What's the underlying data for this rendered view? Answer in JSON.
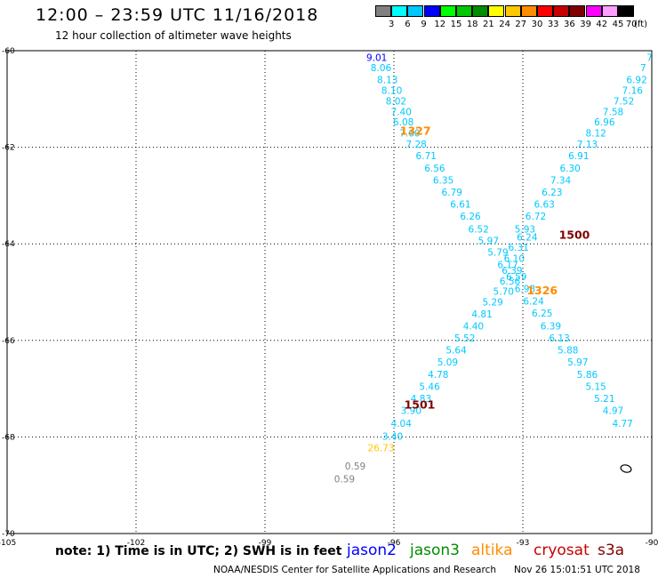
{
  "title": "12:00 – 23:59 UTC 11/16/2018",
  "subtitle": "12 hour collection of altimeter wave heights",
  "colorbar": {
    "labels": [
      "3",
      "6",
      "9",
      "12",
      "15",
      "18",
      "21",
      "24",
      "27",
      "30",
      "33",
      "36",
      "39",
      "42",
      "45",
      "70"
    ],
    "colors": [
      "#808080",
      "#00ffff",
      "#00c8ff",
      "#0000ff",
      "#00ff00",
      "#00c800",
      "#008c00",
      "#ffff00",
      "#ffc800",
      "#ff8c00",
      "#ff0000",
      "#c80000",
      "#800000",
      "#ff00ff",
      "#ffa0ff",
      "#000000"
    ],
    "unit": "(ft)"
  },
  "note": "note: 1) Time is in UTC; 2) SWH is in feet",
  "satellites": [
    {
      "name": "jason2",
      "color": "#0000ff"
    },
    {
      "name": "jason3",
      "color": "#008c00"
    },
    {
      "name": "altika",
      "color": "#ff8c00"
    },
    {
      "name": "cryosat",
      "color": "#c80000"
    },
    {
      "name": "s3a",
      "color": "#800000"
    }
  ],
  "credit": "NOAA/NESDIS Center for Satellite Applications and Research",
  "timestamp": "Nov 26 15:01:51 UTC 2018",
  "chart_data": {
    "type": "scatter",
    "xlim": [
      -105,
      -90
    ],
    "ylim": [
      -70,
      -60
    ],
    "xticks": [
      -105,
      -102,
      -99,
      -96,
      -93,
      -90
    ],
    "yticks": [
      -60,
      -62,
      -64,
      -66,
      -68,
      -70
    ],
    "xtick_labels": [
      "-105",
      "-102",
      "-99",
      "-96",
      "-93",
      "-90"
    ],
    "ytick_labels": [
      "-60",
      "-62",
      "-64",
      "-66",
      "-68",
      "-70"
    ],
    "grid": true,
    "tracks": [
      {
        "label": "1327",
        "label_color": "#ff8c00",
        "label_pos": [
          -95.5,
          -61.65
        ],
        "points": [
          {
            "x": -96.4,
            "y": -60.14,
            "v": "9.01",
            "c": "#0000ff"
          },
          {
            "x": -96.3,
            "y": -60.35,
            "v": "8.06",
            "c": "#00c8ff"
          },
          {
            "x": -96.15,
            "y": -60.6,
            "v": "8.13",
            "c": "#00c8ff"
          },
          {
            "x": -96.05,
            "y": -60.82,
            "v": "8.10",
            "c": "#00c8ff"
          },
          {
            "x": -95.95,
            "y": -61.04,
            "v": "8.02",
            "c": "#00c8ff"
          },
          {
            "x": -95.83,
            "y": -61.26,
            "v": "7.40",
            "c": "#00c8ff"
          },
          {
            "x": -95.78,
            "y": -61.47,
            "v": "6.08",
            "c": "#00c8ff"
          },
          {
            "x": -95.63,
            "y": -61.7,
            "v": "7.60",
            "c": "#00c8ff"
          },
          {
            "x": -95.48,
            "y": -61.93,
            "v": "7.28",
            "c": "#00c8ff"
          },
          {
            "x": -95.25,
            "y": -62.17,
            "v": "6.71",
            "c": "#00c8ff"
          },
          {
            "x": -95.05,
            "y": -62.43,
            "v": "6.56",
            "c": "#00c8ff"
          },
          {
            "x": -94.85,
            "y": -62.68,
            "v": "6.35",
            "c": "#00c8ff"
          },
          {
            "x": -94.65,
            "y": -62.93,
            "v": "6.79",
            "c": "#00c8ff"
          },
          {
            "x": -94.45,
            "y": -63.18,
            "v": "6.61",
            "c": "#00c8ff"
          },
          {
            "x": -94.22,
            "y": -63.43,
            "v": "6.26",
            "c": "#00c8ff"
          },
          {
            "x": -94.03,
            "y": -63.69,
            "v": "6.52",
            "c": "#00c8ff"
          },
          {
            "x": -93.8,
            "y": -63.93,
            "v": "5.97",
            "c": "#00c8ff"
          },
          {
            "x": -93.58,
            "y": -64.17,
            "v": "5.79",
            "c": "#00c8ff"
          },
          {
            "x": -93.35,
            "y": -64.43,
            "v": "6.17",
            "c": "#00c8ff"
          },
          {
            "x": -93.15,
            "y": -64.68,
            "v": "6.59",
            "c": "#00c8ff"
          },
          {
            "x": -92.95,
            "y": -64.93,
            "v": "6.98",
            "c": "#00c8ff"
          },
          {
            "x": -92.75,
            "y": -65.18,
            "v": "6.24",
            "c": "#00c8ff"
          },
          {
            "x": -92.55,
            "y": -65.43,
            "v": "6.25",
            "c": "#00c8ff"
          },
          {
            "x": -92.35,
            "y": -65.7,
            "v": "6.39",
            "c": "#00c8ff"
          },
          {
            "x": -92.15,
            "y": -65.95,
            "v": "6.13",
            "c": "#00c8ff"
          },
          {
            "x": -91.95,
            "y": -66.2,
            "v": "5.88",
            "c": "#00c8ff"
          },
          {
            "x": -91.72,
            "y": -66.45,
            "v": "5.97",
            "c": "#00c8ff"
          },
          {
            "x": -91.5,
            "y": -66.7,
            "v": "5.86",
            "c": "#00c8ff"
          },
          {
            "x": -91.3,
            "y": -66.95,
            "v": "5.15",
            "c": "#00c8ff"
          },
          {
            "x": -91.1,
            "y": -67.2,
            "v": "5.21",
            "c": "#00c8ff"
          },
          {
            "x": -90.9,
            "y": -67.45,
            "v": "4.97",
            "c": "#00c8ff"
          },
          {
            "x": -90.68,
            "y": -67.72,
            "v": "4.77",
            "c": "#00c8ff"
          }
        ]
      },
      {
        "label": "1500",
        "label_color": "#800000",
        "label_pos": [
          -91.8,
          -63.8
        ],
        "points": [
          {
            "x": -90.05,
            "y": -60.14,
            "v": "7",
            "c": "#00c8ff"
          },
          {
            "x": -90.2,
            "y": -60.35,
            "v": "7",
            "c": "#00c8ff"
          },
          {
            "x": -90.35,
            "y": -60.6,
            "v": "6.92",
            "c": "#00c8ff"
          },
          {
            "x": -90.45,
            "y": -60.82,
            "v": "7.16",
            "c": "#00c8ff"
          },
          {
            "x": -90.65,
            "y": -61.04,
            "v": "7.52",
            "c": "#00c8ff"
          },
          {
            "x": -90.9,
            "y": -61.26,
            "v": "7.58",
            "c": "#00c8ff"
          },
          {
            "x": -91.1,
            "y": -61.47,
            "v": "6.96",
            "c": "#00c8ff"
          },
          {
            "x": -91.3,
            "y": -61.7,
            "v": "8.12",
            "c": "#00c8ff"
          },
          {
            "x": -91.5,
            "y": -61.93,
            "v": "7.13",
            "c": "#00c8ff"
          },
          {
            "x": -91.7,
            "y": -62.17,
            "v": "6.91",
            "c": "#00c8ff"
          },
          {
            "x": -91.9,
            "y": -62.43,
            "v": "6.30",
            "c": "#00c8ff"
          },
          {
            "x": -92.12,
            "y": -62.68,
            "v": "7.34",
            "c": "#00c8ff"
          },
          {
            "x": -92.32,
            "y": -62.93,
            "v": "6.23",
            "c": "#00c8ff"
          },
          {
            "x": -92.5,
            "y": -63.18,
            "v": "6.63",
            "c": "#00c8ff"
          },
          {
            "x": -92.7,
            "y": -63.43,
            "v": "6.72",
            "c": "#00c8ff"
          },
          {
            "x": -92.95,
            "y": -63.69,
            "v": "5.93",
            "c": "#00c8ff"
          },
          {
            "x": -92.9,
            "y": -63.86,
            "v": "6.24",
            "c": "#00c8ff"
          },
          {
            "x": -93.1,
            "y": -64.07,
            "v": "6.31",
            "c": "#00c8ff"
          },
          {
            "x": -93.2,
            "y": -64.3,
            "v": "6.10",
            "c": "#00c8ff"
          },
          {
            "x": -93.25,
            "y": -64.55,
            "v": "6.39",
            "c": "#00c8ff"
          },
          {
            "x": -93.3,
            "y": -64.77,
            "v": "6.56",
            "c": "#00c8ff"
          },
          {
            "x": -93.45,
            "y": -64.98,
            "v": "5.70",
            "c": "#00c8ff"
          },
          {
            "x": -93.7,
            "y": -65.2,
            "v": "5.29",
            "c": "#00c8ff"
          },
          {
            "x": -93.95,
            "y": -65.45,
            "v": "4.81",
            "c": "#00c8ff"
          },
          {
            "x": -94.15,
            "y": -65.7,
            "v": "4.40",
            "c": "#00c8ff"
          },
          {
            "x": -94.35,
            "y": -65.95,
            "v": "5.52",
            "c": "#00c8ff"
          },
          {
            "x": -94.55,
            "y": -66.2,
            "v": "5.64",
            "c": "#00c8ff"
          },
          {
            "x": -94.75,
            "y": -66.45,
            "v": "5.09",
            "c": "#00c8ff"
          },
          {
            "x": -94.97,
            "y": -66.7,
            "v": "4.78",
            "c": "#00c8ff"
          },
          {
            "x": -95.17,
            "y": -66.95,
            "v": "5.46",
            "c": "#00c8ff"
          },
          {
            "x": -95.37,
            "y": -67.2,
            "v": "4.83",
            "c": "#00c8ff"
          },
          {
            "x": -95.6,
            "y": -67.45,
            "v": "3.90",
            "c": "#00c8ff"
          },
          {
            "x": -95.83,
            "y": -67.72,
            "v": "4.04",
            "c": "#00c8ff"
          },
          {
            "x": -96.03,
            "y": -67.98,
            "v": "3.40",
            "c": "#00c8ff"
          },
          {
            "x": -96.3,
            "y": -68.22,
            "v": "26.73",
            "c": "#ffc800"
          }
        ]
      },
      {
        "label": "1326",
        "label_color": "#ff8c00",
        "label_pos": [
          -92.55,
          -64.95
        ],
        "points": []
      },
      {
        "label": "1501",
        "label_color": "#800000",
        "label_pos": [
          -95.4,
          -67.32
        ],
        "points": []
      },
      {
        "label": "",
        "label_color": "#808080",
        "label_pos": [
          -96.3,
          -68.5
        ],
        "points": [
          {
            "x": -96.9,
            "y": -68.6,
            "v": "0.59",
            "c": "#808080"
          },
          {
            "x": -97.15,
            "y": -68.87,
            "v": "0.59",
            "c": "#808080"
          }
        ]
      }
    ]
  }
}
